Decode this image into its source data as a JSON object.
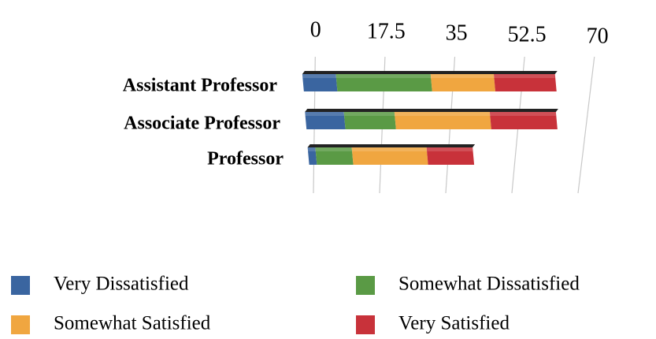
{
  "chart_data": {
    "type": "bar",
    "orientation": "horizontal",
    "stacked": true,
    "categories": [
      "Assistant Professor",
      "Associate Professor",
      "Professor"
    ],
    "series": [
      {
        "name": "Very Dissatisfied",
        "color": "#3a65a0",
        "values": [
          8.5,
          10,
          2
        ]
      },
      {
        "name": "Somewhat Dissatisfied",
        "color": "#5a9a45",
        "values": [
          24,
          13,
          9.5
        ]
      },
      {
        "name": "Somewhat Satisfied",
        "color": "#f0a640",
        "values": [
          16,
          24.5,
          19.5
        ]
      },
      {
        "name": "Very Satisfied",
        "color": "#c8323a",
        "values": [
          15.5,
          17,
          12
        ]
      }
    ],
    "xlim": [
      0,
      70
    ],
    "xticks": [
      0,
      17.5,
      35,
      52.5,
      70
    ],
    "grid": true,
    "legend": "bottom"
  }
}
